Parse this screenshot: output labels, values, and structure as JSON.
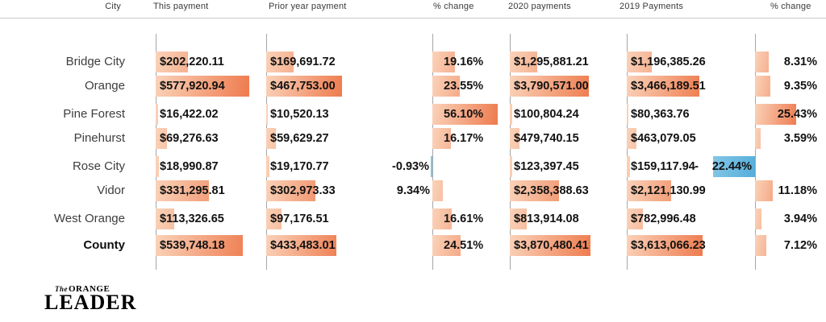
{
  "header": {
    "columns": [
      "City",
      "This payment",
      "Prior year payment",
      "% change",
      "2020 payments",
      "2019 Payments",
      "% change"
    ]
  },
  "chart_data": {
    "type": "table",
    "columns": [
      "City",
      "This payment",
      "Prior year payment",
      "% change",
      "2020 payments",
      "2019 Payments",
      "% change"
    ],
    "rows": [
      [
        "Bridge City",
        202220.11,
        169691.72,
        19.16,
        1295881.21,
        1196385.26,
        8.31
      ],
      [
        "Orange",
        577920.94,
        467753.0,
        23.55,
        3790571.0,
        3466189.51,
        9.35
      ],
      [
        "Pine Forest",
        16422.02,
        10520.13,
        56.1,
        100804.24,
        80363.76,
        25.43
      ],
      [
        "Pinehurst",
        69276.63,
        59629.27,
        16.17,
        479740.15,
        463079.05,
        3.59
      ],
      [
        "Rose City",
        18990.87,
        19170.77,
        -0.93,
        123397.45,
        159117.94,
        -22.44
      ],
      [
        "Vidor",
        331295.81,
        302973.33,
        9.34,
        2358388.63,
        2121130.99,
        11.18
      ],
      [
        "West Orange",
        113326.65,
        97176.51,
        16.61,
        813914.08,
        782996.48,
        3.94
      ],
      [
        "County",
        539748.18,
        433483.01,
        24.51,
        3870480.41,
        3613066.23,
        7.12
      ]
    ],
    "legend_position": "none",
    "grid": "column-axis-lines-only",
    "bar_style": "horizontal bars behind value labels, orange gradient for positive, blue for negative"
  },
  "rows": [
    {
      "city": "Bridge City",
      "is_total": false,
      "this_payment": {
        "label": "$202,220.11",
        "value": 202220.11
      },
      "prior_year_payment": {
        "label": "$169,691.72",
        "value": 169691.72
      },
      "pct_change_recent": {
        "label": "19.16%",
        "value": 19.16
      },
      "payments_2020": {
        "label": "$1,295,881.21",
        "value": 1295881.21
      },
      "payments_2019": {
        "label": "$1,196,385.26",
        "value": 1196385.26
      },
      "pct_change_annual": {
        "label": "8.31%",
        "value": 8.31
      }
    },
    {
      "city": "Orange",
      "is_total": false,
      "this_payment": {
        "label": "$577,920.94",
        "value": 577920.94
      },
      "prior_year_payment": {
        "label": "$467,753.00",
        "value": 467753.0
      },
      "pct_change_recent": {
        "label": "23.55%",
        "value": 23.55
      },
      "payments_2020": {
        "label": "$3,790,571.00",
        "value": 3790571.0
      },
      "payments_2019": {
        "label": "$3,466,189.51",
        "value": 3466189.51
      },
      "pct_change_annual": {
        "label": "9.35%",
        "value": 9.35
      }
    },
    {
      "city": "Pine Forest",
      "is_total": false,
      "this_payment": {
        "label": "$16,422.02",
        "value": 16422.02
      },
      "prior_year_payment": {
        "label": "$10,520.13",
        "value": 10520.13
      },
      "pct_change_recent": {
        "label": "56.10%",
        "value": 56.1
      },
      "payments_2020": {
        "label": "$100,804.24",
        "value": 100804.24
      },
      "payments_2019": {
        "label": "$80,363.76",
        "value": 80363.76
      },
      "pct_change_annual": {
        "label": "25.43%",
        "value": 25.43
      }
    },
    {
      "city": "Pinehurst",
      "is_total": false,
      "this_payment": {
        "label": "$69,276.63",
        "value": 69276.63
      },
      "prior_year_payment": {
        "label": "$59,629.27",
        "value": 59629.27
      },
      "pct_change_recent": {
        "label": "16.17%",
        "value": 16.17
      },
      "payments_2020": {
        "label": "$479,740.15",
        "value": 479740.15
      },
      "payments_2019": {
        "label": "$463,079.05",
        "value": 463079.05
      },
      "pct_change_annual": {
        "label": "3.59%",
        "value": 3.59
      }
    },
    {
      "city": "Rose City",
      "is_total": false,
      "this_payment": {
        "label": "$18,990.87",
        "value": 18990.87
      },
      "prior_year_payment": {
        "label": "$19,170.77",
        "value": 19170.77
      },
      "pct_change_recent": {
        "label": "-0.93%",
        "value": -0.93
      },
      "payments_2020": {
        "label": "$123,397.45",
        "value": 123397.45
      },
      "payments_2019": {
        "label": "$159,117.94",
        "value": 159117.94
      },
      "pct_change_annual": {
        "label": "-22.44%",
        "value": -22.44
      }
    },
    {
      "city": "Vidor",
      "is_total": false,
      "this_payment": {
        "label": "$331,295.81",
        "value": 331295.81
      },
      "prior_year_payment": {
        "label": "$302,973.33",
        "value": 302973.33
      },
      "pct_change_recent": {
        "label": "9.34%",
        "value": 9.34
      },
      "payments_2020": {
        "label": "$2,358,388.63",
        "value": 2358388.63
      },
      "payments_2019": {
        "label": "$2,121,130.99",
        "value": 2121130.99
      },
      "pct_change_annual": {
        "label": "11.18%",
        "value": 11.18
      }
    },
    {
      "city": "West Orange",
      "is_total": false,
      "this_payment": {
        "label": "$113,326.65",
        "value": 113326.65
      },
      "prior_year_payment": {
        "label": "$97,176.51",
        "value": 97176.51
      },
      "pct_change_recent": {
        "label": "16.61%",
        "value": 16.61
      },
      "payments_2020": {
        "label": "$813,914.08",
        "value": 813914.08
      },
      "payments_2019": {
        "label": "$782,996.48",
        "value": 782996.48
      },
      "pct_change_annual": {
        "label": "3.94%",
        "value": 3.94
      }
    },
    {
      "city": "County",
      "is_total": true,
      "this_payment": {
        "label": "$539,748.18",
        "value": 539748.18
      },
      "prior_year_payment": {
        "label": "$433,483.01",
        "value": 433483.01
      },
      "pct_change_recent": {
        "label": "24.51%",
        "value": 24.51
      },
      "payments_2020": {
        "label": "$3,870,480.41",
        "value": 3870480.41
      },
      "payments_2019": {
        "label": "$3,613,066.23",
        "value": 3613066.23
      },
      "pct_change_annual": {
        "label": "7.12%",
        "value": 7.12
      }
    }
  ],
  "logo": {
    "the": "The",
    "orange": "ORANGE",
    "leader": "LEADER"
  },
  "colors": {
    "bar_light": "#fad2b9",
    "bar_dark": "#ee7b4e",
    "negative_light": "#83c6e6",
    "negative_dark": "#55aeda",
    "axis_line": "#a6a6a6",
    "header_rule": "#cccccc",
    "value_text": "#121212",
    "city_text": "#3d3d3d"
  }
}
